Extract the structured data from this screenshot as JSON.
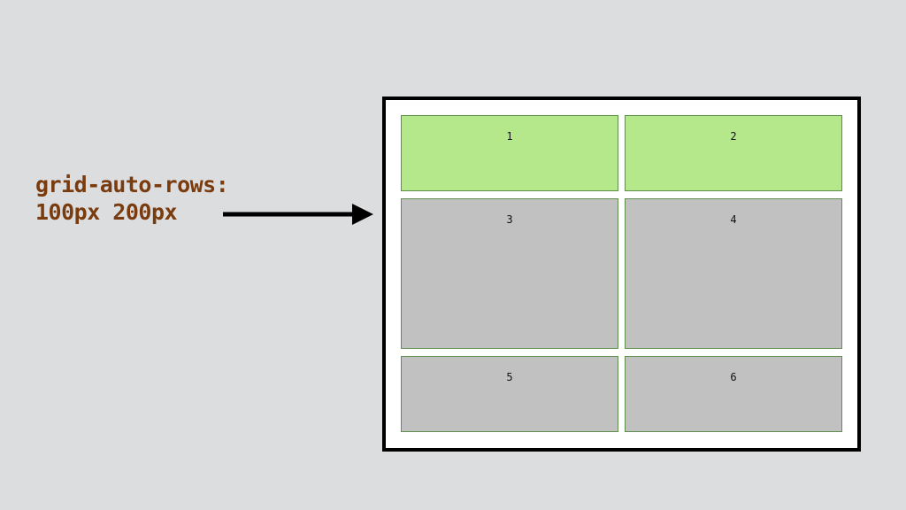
{
  "label": {
    "line1": "grid-auto-rows:",
    "line2": "100px 200px"
  },
  "colors": {
    "background": "#dcdddf",
    "label_text": "#7a3c0e",
    "highlight_cell": "#b4e88a",
    "default_cell": "#c1c1c1",
    "cell_border": "#5f8f4c",
    "container_border": "#000000"
  },
  "grid": {
    "cells": [
      {
        "label": "1",
        "highlighted": true
      },
      {
        "label": "2",
        "highlighted": true
      },
      {
        "label": "3",
        "highlighted": false
      },
      {
        "label": "4",
        "highlighted": false
      },
      {
        "label": "5",
        "highlighted": false
      },
      {
        "label": "6",
        "highlighted": false
      }
    ]
  }
}
